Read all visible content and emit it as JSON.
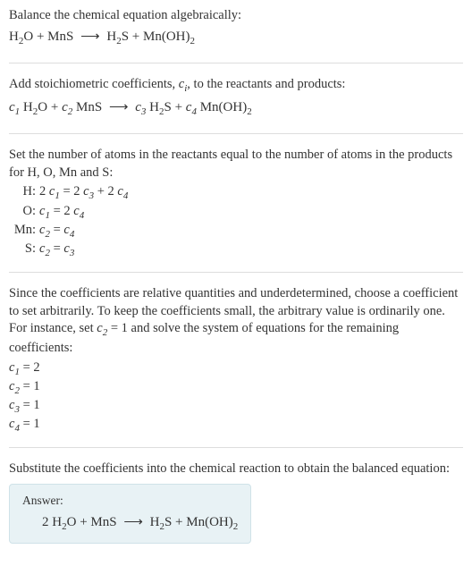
{
  "section1": {
    "intro": "Balance the chemical equation algebraically:"
  },
  "section2": {
    "text": "Add stoichiometric coefficients, ",
    "text2": ", to the reactants and products:"
  },
  "section3": {
    "text": "Set the number of atoms in the reactants equal to the number of atoms in the products for H, O, Mn and S:",
    "rows": {
      "h_sym": "H:",
      "o_sym": "O:",
      "mn_sym": "Mn:",
      "s_sym": "S:"
    }
  },
  "section4": {
    "text1": "Since the coefficients are relative quantities and underdetermined, choose a coefficient to set arbitrarily. To keep the coefficients small, the arbitrary value is ordinarily one. For instance, set ",
    "text2": " and solve the system of equations for the remaining coefficients:",
    "c1": " = 2",
    "c2": " = 1",
    "c3": " = 1",
    "c4": " = 1"
  },
  "section5": {
    "text": "Substitute the coefficients into the chemical reaction to obtain the balanced equation:",
    "answer_label": "Answer:"
  },
  "chem": {
    "h2o": "H",
    "two": "2",
    "o": "O",
    "plus": " + ",
    "mns": "MnS",
    "arrow": "⟶",
    "h2s_h": "H",
    "s": "S",
    "mnoh": "Mn(OH)",
    "c": "c",
    "i": "i",
    "one": "1",
    "three": "3",
    "four": "4",
    "eq": " = ",
    "two_plain": "2 ",
    "eq1": " = 1"
  },
  "colors": {
    "text": "#333333",
    "border": "#dddddd",
    "answer_bg": "#e8f2f5",
    "answer_border": "#cfe2e8"
  }
}
